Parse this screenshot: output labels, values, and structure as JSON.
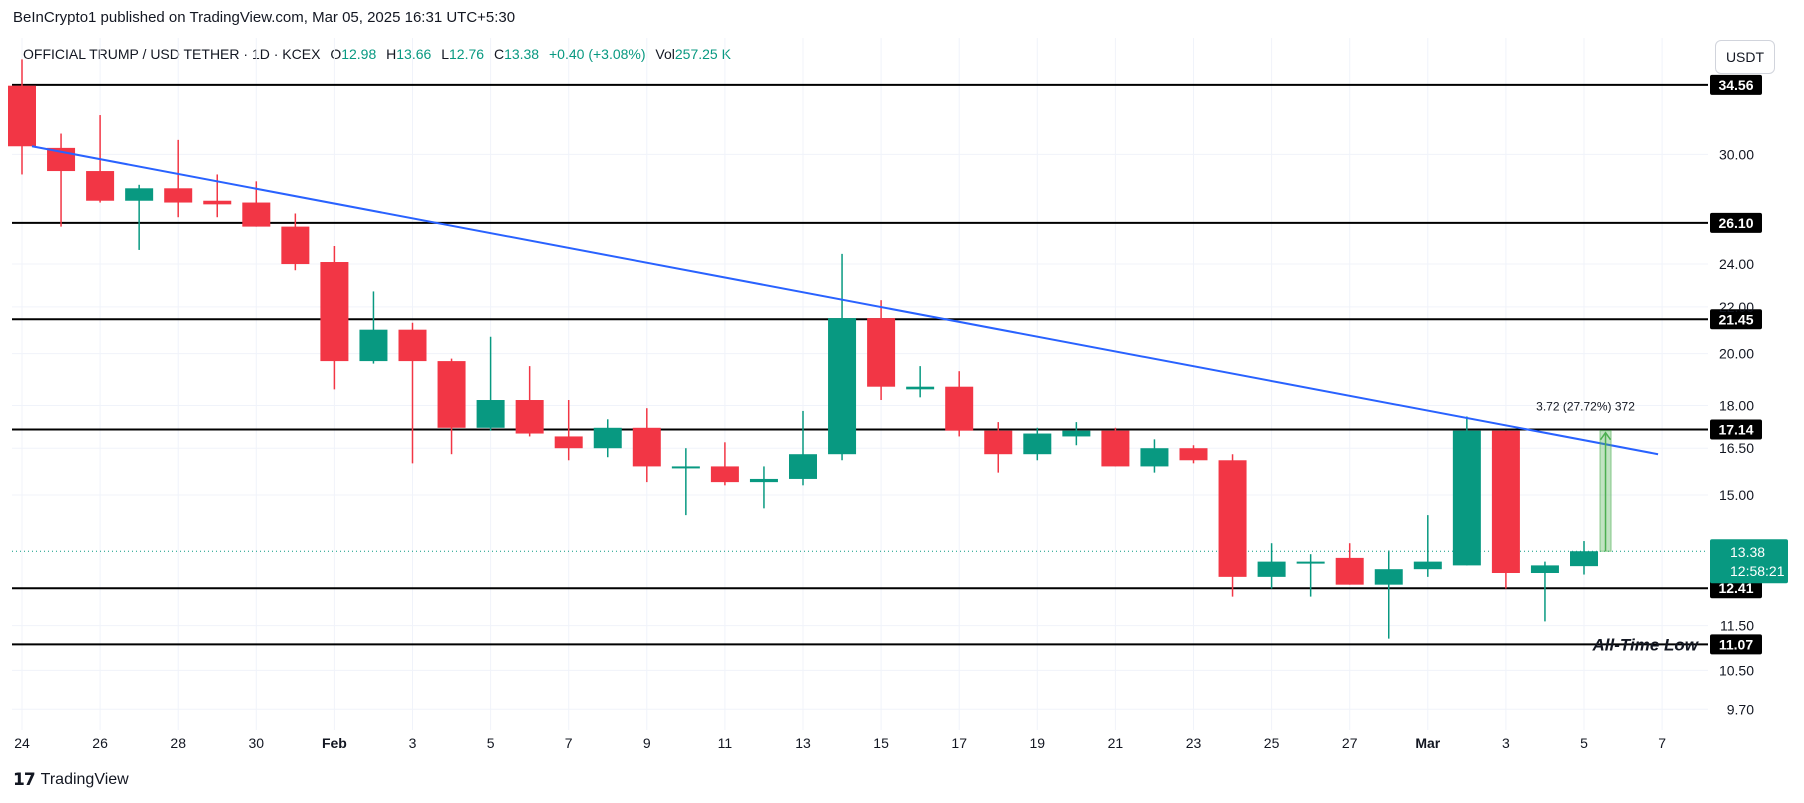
{
  "header": {
    "credit": "BeInCrypto1 published on TradingView.com, Mar 05, 2025 16:31 UTC+5:30",
    "symbol": "OFFICIAL TRUMP / USD TETHER · 1D · KCEX",
    "o_label": "O",
    "o_value": "12.98",
    "h_label": "H",
    "h_value": "13.66",
    "l_label": "L",
    "l_value": "12.76",
    "c_label": "C",
    "c_value": "13.38",
    "change": "+0.40 (+3.08%)",
    "vol_label": "Vol",
    "vol_value": "257.25 K",
    "currency_button": "USDT"
  },
  "footer": {
    "brand": "TradingView"
  },
  "colors": {
    "up": "#089981",
    "down": "#f23645",
    "trend": "#2962ff",
    "measure": "#4caf50"
  },
  "chart_data": {
    "type": "candlestick",
    "title": "OFFICIAL TRUMP / USD TETHER · 1D · KCEX",
    "ylim": [
      9.3,
      36.5
    ],
    "y_scale": "log",
    "y_ticks": [
      "9.70",
      "10.50",
      "11.50",
      "15.00",
      "16.50",
      "18.00",
      "20.00",
      "22.00",
      "24.00",
      "30.00"
    ],
    "x_ticks": [
      {
        "label": "24",
        "idx": 0
      },
      {
        "label": "26",
        "idx": 2
      },
      {
        "label": "28",
        "idx": 4
      },
      {
        "label": "30",
        "idx": 6
      },
      {
        "label": "Feb",
        "idx": 8
      },
      {
        "label": "3",
        "idx": 10
      },
      {
        "label": "5",
        "idx": 12
      },
      {
        "label": "7",
        "idx": 14
      },
      {
        "label": "9",
        "idx": 16
      },
      {
        "label": "11",
        "idx": 18
      },
      {
        "label": "13",
        "idx": 20
      },
      {
        "label": "15",
        "idx": 22
      },
      {
        "label": "17",
        "idx": 24
      },
      {
        "label": "19",
        "idx": 26
      },
      {
        "label": "21",
        "idx": 28
      },
      {
        "label": "23",
        "idx": 30
      },
      {
        "label": "25",
        "idx": 32
      },
      {
        "label": "27",
        "idx": 34
      },
      {
        "label": "Mar",
        "idx": 36
      },
      {
        "label": "3",
        "idx": 38
      },
      {
        "label": "5",
        "idx": 40
      },
      {
        "label": "7",
        "idx": 42
      }
    ],
    "candles": [
      {
        "o": 34.5,
        "h": 36.4,
        "l": 28.8,
        "c": 30.5
      },
      {
        "o": 30.4,
        "h": 31.3,
        "l": 25.9,
        "c": 29.0
      },
      {
        "o": 29.0,
        "h": 32.5,
        "l": 27.2,
        "c": 27.3
      },
      {
        "o": 27.3,
        "h": 28.2,
        "l": 24.7,
        "c": 28.0
      },
      {
        "o": 28.0,
        "h": 30.9,
        "l": 26.4,
        "c": 27.2
      },
      {
        "o": 27.3,
        "h": 28.8,
        "l": 26.4,
        "c": 27.1
      },
      {
        "o": 27.2,
        "h": 28.4,
        "l": 25.9,
        "c": 25.9
      },
      {
        "o": 25.9,
        "h": 26.6,
        "l": 23.7,
        "c": 24.0
      },
      {
        "o": 24.1,
        "h": 24.9,
        "l": 18.6,
        "c": 19.7
      },
      {
        "o": 19.7,
        "h": 22.7,
        "l": 19.6,
        "c": 21.0
      },
      {
        "o": 21.0,
        "h": 21.3,
        "l": 16.0,
        "c": 19.7
      },
      {
        "o": 19.7,
        "h": 19.8,
        "l": 16.3,
        "c": 17.2
      },
      {
        "o": 17.2,
        "h": 20.7,
        "l": 17.1,
        "c": 18.2
      },
      {
        "o": 18.2,
        "h": 19.5,
        "l": 16.9,
        "c": 17.0
      },
      {
        "o": 16.9,
        "h": 18.2,
        "l": 16.1,
        "c": 16.5
      },
      {
        "o": 16.5,
        "h": 17.5,
        "l": 16.2,
        "c": 17.2
      },
      {
        "o": 17.2,
        "h": 17.9,
        "l": 15.4,
        "c": 15.9
      },
      {
        "o": 15.9,
        "h": 16.5,
        "l": 14.4,
        "c": 15.9
      },
      {
        "o": 15.9,
        "h": 16.7,
        "l": 15.3,
        "c": 15.4
      },
      {
        "o": 15.4,
        "h": 15.9,
        "l": 14.6,
        "c": 15.5
      },
      {
        "o": 15.5,
        "h": 17.8,
        "l": 15.3,
        "c": 16.3
      },
      {
        "o": 16.3,
        "h": 24.5,
        "l": 16.1,
        "c": 21.5
      },
      {
        "o": 21.5,
        "h": 22.3,
        "l": 18.2,
        "c": 18.7
      },
      {
        "o": 18.6,
        "h": 19.5,
        "l": 18.3,
        "c": 18.7
      },
      {
        "o": 18.7,
        "h": 19.3,
        "l": 16.9,
        "c": 17.1
      },
      {
        "o": 17.1,
        "h": 17.4,
        "l": 15.7,
        "c": 16.3
      },
      {
        "o": 16.3,
        "h": 17.2,
        "l": 16.1,
        "c": 17.0
      },
      {
        "o": 16.9,
        "h": 17.4,
        "l": 16.6,
        "c": 17.1
      },
      {
        "o": 17.1,
        "h": 17.2,
        "l": 15.9,
        "c": 15.9
      },
      {
        "o": 15.9,
        "h": 16.8,
        "l": 15.7,
        "c": 16.5
      },
      {
        "o": 16.5,
        "h": 16.6,
        "l": 16.0,
        "c": 16.1
      },
      {
        "o": 16.1,
        "h": 16.3,
        "l": 12.2,
        "c": 12.7
      },
      {
        "o": 12.7,
        "h": 13.6,
        "l": 12.4,
        "c": 13.1
      },
      {
        "o": 13.1,
        "h": 13.3,
        "l": 12.2,
        "c": 13.1
      },
      {
        "o": 13.2,
        "h": 13.6,
        "l": 12.5,
        "c": 12.5
      },
      {
        "o": 12.5,
        "h": 13.4,
        "l": 11.2,
        "c": 12.9
      },
      {
        "o": 12.9,
        "h": 14.4,
        "l": 12.7,
        "c": 13.1
      },
      {
        "o": 13.0,
        "h": 17.6,
        "l": 13.0,
        "c": 17.1
      },
      {
        "o": 17.1,
        "h": 17.1,
        "l": 12.4,
        "c": 12.8
      },
      {
        "o": 12.8,
        "h": 13.1,
        "l": 11.6,
        "c": 13.0
      },
      {
        "o": 12.98,
        "h": 13.66,
        "l": 12.76,
        "c": 13.38
      }
    ],
    "horizontal_levels": [
      {
        "value": 34.56,
        "label": "34.56"
      },
      {
        "value": 26.1,
        "label": "26.10"
      },
      {
        "value": 21.45,
        "label": "21.45"
      },
      {
        "value": 17.14,
        "label": "17.14"
      },
      {
        "value": 12.41,
        "label": "12.41"
      },
      {
        "value": 11.07,
        "label": "11.07",
        "annotation": "All-Time Low"
      }
    ],
    "trendline": {
      "from": {
        "idx": 0,
        "value": 30.5
      },
      "to": {
        "idx": 41,
        "value": 16.3
      }
    },
    "measure": {
      "from_idx": 40,
      "to_idx": 41,
      "low": 13.38,
      "high": 17.1,
      "text": "3.72 (27.72%) 372"
    },
    "last_price": {
      "value": 13.38,
      "label": "13.38",
      "countdown": "12:58:21"
    }
  }
}
